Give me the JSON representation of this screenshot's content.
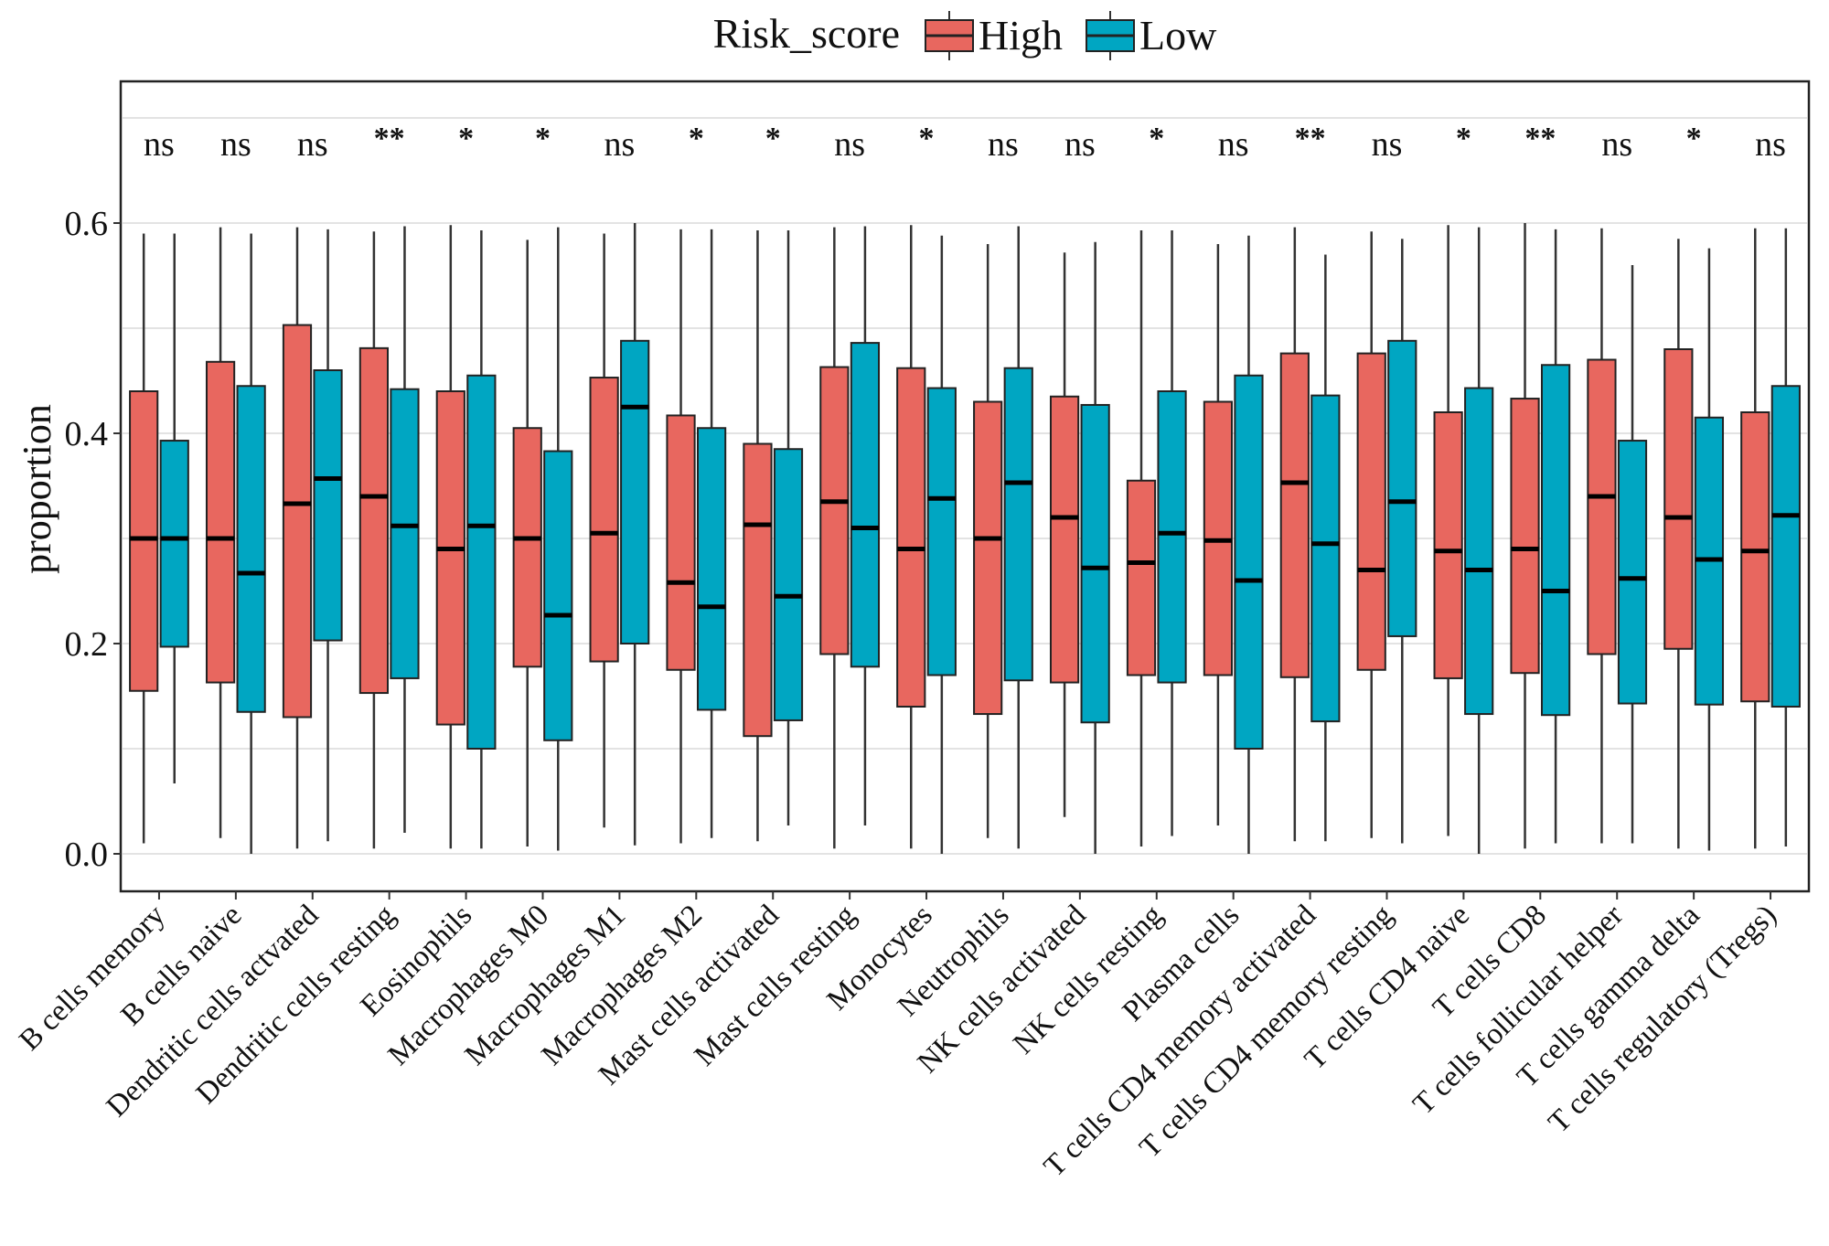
{
  "chart_data": {
    "type": "box",
    "title": "",
    "xlabel": "",
    "ylabel": "proportion",
    "ylim": [
      -0.03,
      0.7
    ],
    "yticks": [
      "0.0",
      "0.2",
      "0.4",
      "0.6"
    ],
    "ytick_values": [
      0.0,
      0.2,
      0.4,
      0.6
    ],
    "grid": true,
    "legend": {
      "title": "Risk_score",
      "placement": "top",
      "entries": [
        {
          "name": "High",
          "color": "#E8675F"
        },
        {
          "name": "Low",
          "color": "#00A6C2"
        }
      ]
    },
    "categories": [
      "B cells memory",
      "B cells naive",
      "Dendritic cells actvated",
      "Dendritic cells resting",
      "Eosinophils",
      "Macrophages M0",
      "Macrophages M1",
      "Macrophages M2",
      "Mast cells activated",
      "Mast cells resting",
      "Monocytes",
      "Neutrophils",
      "NK cells activated",
      "NK cells resting",
      "Plasma cells",
      "T cells CD4 memory activated",
      "T cells CD4 memory resting",
      "T cells CD4 naive",
      "T cells CD8",
      "T cells follicular helper",
      "T cells gamma delta",
      "T cells regulatory (Tregs)"
    ],
    "significance": [
      "ns",
      "ns",
      "ns",
      "**",
      "*",
      "*",
      "ns",
      "*",
      "*",
      "ns",
      "*",
      "ns",
      "ns",
      "*",
      "ns",
      "**",
      "ns",
      "*",
      "**",
      "ns",
      "*",
      "ns"
    ],
    "series": [
      {
        "name": "High",
        "color": "#E8675F",
        "boxes": [
          {
            "min": 0.01,
            "q1": 0.155,
            "median": 0.3,
            "q3": 0.44,
            "max": 0.59
          },
          {
            "min": 0.015,
            "q1": 0.163,
            "median": 0.3,
            "q3": 0.468,
            "max": 0.596
          },
          {
            "min": 0.005,
            "q1": 0.13,
            "median": 0.333,
            "q3": 0.503,
            "max": 0.596
          },
          {
            "min": 0.005,
            "q1": 0.153,
            "median": 0.34,
            "q3": 0.481,
            "max": 0.592
          },
          {
            "min": 0.005,
            "q1": 0.123,
            "median": 0.29,
            "q3": 0.44,
            "max": 0.598
          },
          {
            "min": 0.007,
            "q1": 0.178,
            "median": 0.3,
            "q3": 0.405,
            "max": 0.584
          },
          {
            "min": 0.025,
            "q1": 0.183,
            "median": 0.305,
            "q3": 0.453,
            "max": 0.59
          },
          {
            "min": 0.01,
            "q1": 0.175,
            "median": 0.258,
            "q3": 0.417,
            "max": 0.594
          },
          {
            "min": 0.012,
            "q1": 0.112,
            "median": 0.313,
            "q3": 0.39,
            "max": 0.593
          },
          {
            "min": 0.005,
            "q1": 0.19,
            "median": 0.335,
            "q3": 0.463,
            "max": 0.596
          },
          {
            "min": 0.005,
            "q1": 0.14,
            "median": 0.29,
            "q3": 0.462,
            "max": 0.598
          },
          {
            "min": 0.015,
            "q1": 0.133,
            "median": 0.3,
            "q3": 0.43,
            "max": 0.58
          },
          {
            "min": 0.035,
            "q1": 0.163,
            "median": 0.32,
            "q3": 0.435,
            "max": 0.572
          },
          {
            "min": 0.007,
            "q1": 0.17,
            "median": 0.277,
            "q3": 0.355,
            "max": 0.593
          },
          {
            "min": 0.027,
            "q1": 0.17,
            "median": 0.298,
            "q3": 0.43,
            "max": 0.58
          },
          {
            "min": 0.012,
            "q1": 0.168,
            "median": 0.353,
            "q3": 0.476,
            "max": 0.596
          },
          {
            "min": 0.015,
            "q1": 0.175,
            "median": 0.27,
            "q3": 0.476,
            "max": 0.592
          },
          {
            "min": 0.017,
            "q1": 0.167,
            "median": 0.288,
            "q3": 0.42,
            "max": 0.598
          },
          {
            "min": 0.005,
            "q1": 0.172,
            "median": 0.29,
            "q3": 0.433,
            "max": 0.6
          },
          {
            "min": 0.01,
            "q1": 0.19,
            "median": 0.34,
            "q3": 0.47,
            "max": 0.595
          },
          {
            "min": 0.005,
            "q1": 0.195,
            "median": 0.32,
            "q3": 0.48,
            "max": 0.585
          },
          {
            "min": 0.005,
            "q1": 0.145,
            "median": 0.288,
            "q3": 0.42,
            "max": 0.595
          }
        ]
      },
      {
        "name": "Low",
        "color": "#00A6C2",
        "boxes": [
          {
            "min": 0.067,
            "q1": 0.197,
            "median": 0.3,
            "q3": 0.393,
            "max": 0.59
          },
          {
            "min": 0.0,
            "q1": 0.135,
            "median": 0.267,
            "q3": 0.445,
            "max": 0.59
          },
          {
            "min": 0.012,
            "q1": 0.203,
            "median": 0.357,
            "q3": 0.46,
            "max": 0.594
          },
          {
            "min": 0.02,
            "q1": 0.167,
            "median": 0.312,
            "q3": 0.442,
            "max": 0.597
          },
          {
            "min": 0.005,
            "q1": 0.1,
            "median": 0.312,
            "q3": 0.455,
            "max": 0.593
          },
          {
            "min": 0.003,
            "q1": 0.108,
            "median": 0.227,
            "q3": 0.383,
            "max": 0.596
          },
          {
            "min": 0.008,
            "q1": 0.2,
            "median": 0.425,
            "q3": 0.488,
            "max": 0.6
          },
          {
            "min": 0.015,
            "q1": 0.137,
            "median": 0.235,
            "q3": 0.405,
            "max": 0.594
          },
          {
            "min": 0.027,
            "q1": 0.127,
            "median": 0.245,
            "q3": 0.385,
            "max": 0.593
          },
          {
            "min": 0.027,
            "q1": 0.178,
            "median": 0.31,
            "q3": 0.486,
            "max": 0.597
          },
          {
            "min": 0.0,
            "q1": 0.17,
            "median": 0.338,
            "q3": 0.443,
            "max": 0.588
          },
          {
            "min": 0.005,
            "q1": 0.165,
            "median": 0.353,
            "q3": 0.462,
            "max": 0.597
          },
          {
            "min": 0.0,
            "q1": 0.125,
            "median": 0.272,
            "q3": 0.427,
            "max": 0.582
          },
          {
            "min": 0.017,
            "q1": 0.163,
            "median": 0.305,
            "q3": 0.44,
            "max": 0.593
          },
          {
            "min": 0.0,
            "q1": 0.1,
            "median": 0.26,
            "q3": 0.455,
            "max": 0.588
          },
          {
            "min": 0.012,
            "q1": 0.126,
            "median": 0.295,
            "q3": 0.436,
            "max": 0.57
          },
          {
            "min": 0.01,
            "q1": 0.207,
            "median": 0.335,
            "q3": 0.488,
            "max": 0.585
          },
          {
            "min": 0.0,
            "q1": 0.133,
            "median": 0.27,
            "q3": 0.443,
            "max": 0.596
          },
          {
            "min": 0.01,
            "q1": 0.132,
            "median": 0.25,
            "q3": 0.465,
            "max": 0.594
          },
          {
            "min": 0.01,
            "q1": 0.143,
            "median": 0.262,
            "q3": 0.393,
            "max": 0.56
          },
          {
            "min": 0.003,
            "q1": 0.142,
            "median": 0.28,
            "q3": 0.415,
            "max": 0.576
          },
          {
            "min": 0.007,
            "q1": 0.14,
            "median": 0.322,
            "q3": 0.445,
            "max": 0.595
          }
        ]
      }
    ]
  }
}
